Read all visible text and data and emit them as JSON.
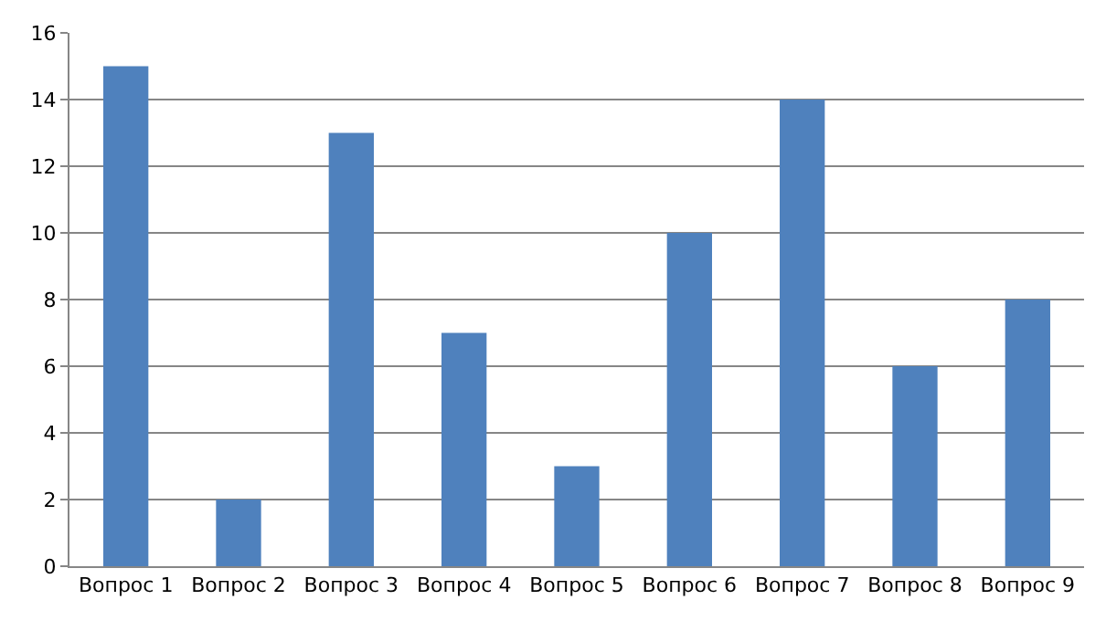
{
  "chart_data": {
    "type": "bar",
    "categories": [
      "Вопрос 1",
      "Вопрос 2",
      "Вопрос 3",
      "Вопрос 4",
      "Вопрос 5",
      "Вопрос 6",
      "Вопрос 7",
      "Вопрос 8",
      "Вопрос 9"
    ],
    "values": [
      15,
      2,
      13,
      7,
      3,
      10,
      14,
      6,
      8
    ],
    "color": "#4f81bd",
    "ylim": [
      0,
      16
    ],
    "yticks": [
      0,
      2,
      4,
      6,
      8,
      10,
      12,
      14,
      16
    ],
    "grid": "y",
    "legend": false
  }
}
